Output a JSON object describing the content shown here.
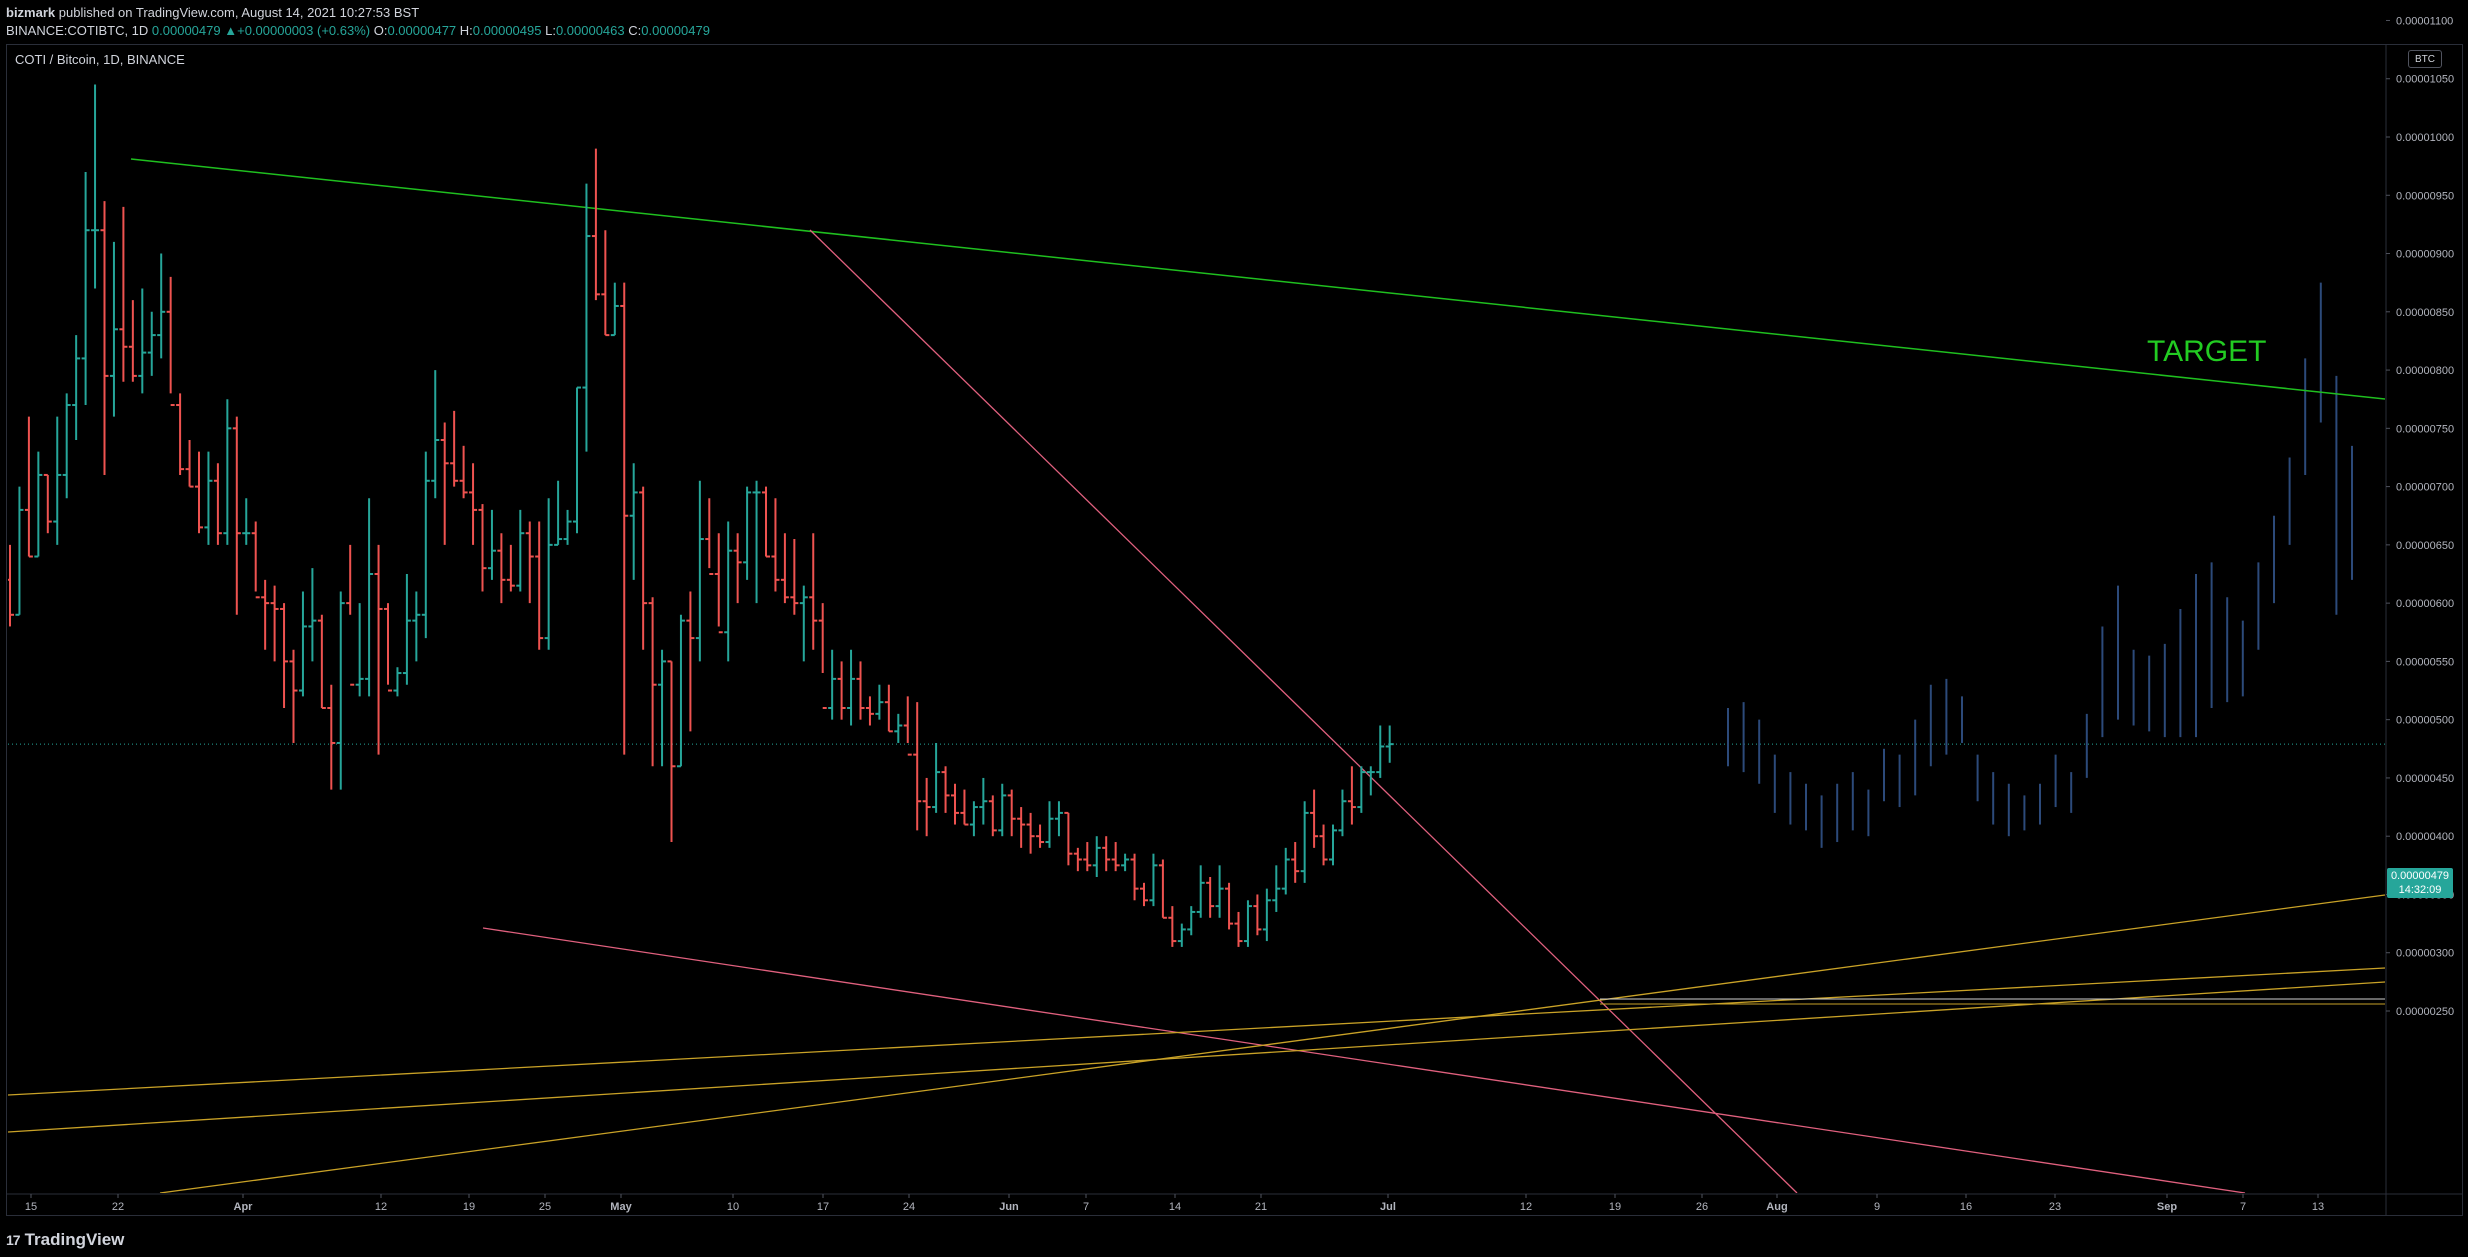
{
  "header": {
    "author": "bizmark",
    "published_text": "published on TradingView.com, August 14, 2021 10:27:53 BST",
    "symbol": "BINANCE:COTIBTC, 1D",
    "last": "0.00000479",
    "change_arrow": "▲",
    "change": "+0.00000003 (+0.63%)",
    "o_label": "O:",
    "o_value": "0.00000477",
    "h_label": "H:",
    "h_value": "0.00000495",
    "l_label": "L:",
    "l_value": "0.00000463",
    "c_label": "C:",
    "c_value": "0.00000479"
  },
  "chart_title": "COTI / Bitcoin, 1D, BINANCE",
  "currency_badge": "BTC",
  "last_price_tag": {
    "price": "0.00000479",
    "countdown": "14:32:09"
  },
  "branding": {
    "logo_text": "TradingView",
    "logo_mark": "17"
  },
  "colors": {
    "background": "#000000",
    "up": "#26a69a",
    "down": "#ef5350",
    "projection": "#2c4a7a",
    "green_trendline": "#1fbf1f",
    "pink_trendline": "#e0607e",
    "yellow_lines": "#c9a227",
    "target_text": "#22cc22"
  },
  "chart_data": {
    "type": "ohlc",
    "y_axis": {
      "min": 2.3e-06,
      "max": 1.11e-05,
      "ticks": [
        "0.00001100",
        "0.00001050",
        "0.00001000",
        "0.00000950",
        "0.00000900",
        "0.00000850",
        "0.00000800",
        "0.00000750",
        "0.00000700",
        "0.00000650",
        "0.00000600",
        "0.00000550",
        "0.00000500",
        "0.00000450",
        "0.00000400",
        "0.00000350",
        "0.00000300",
        "0.00000250"
      ]
    },
    "x_axis": {
      "tick_labels": [
        "15",
        "22",
        "Apr",
        "12",
        "19",
        "25",
        "May",
        "10",
        "17",
        "24",
        "Jun",
        "7",
        "14",
        "21",
        "Jul",
        "12",
        "19",
        "26",
        "Aug",
        "9",
        "16",
        "23",
        "Sep",
        "7",
        "13"
      ],
      "bold_labels": [
        "Apr",
        "May",
        "Jun",
        "Jul",
        "Aug",
        "Sep"
      ]
    },
    "last_price": 4.79e-06,
    "annotation": {
      "text": "TARGET",
      "color": "#22cc22"
    },
    "price_bars": [
      [
        6.2,
        6.5,
        5.8,
        5.9
      ],
      [
        5.9,
        7.0,
        5.9,
        6.8
      ],
      [
        6.8,
        7.6,
        6.4,
        6.4
      ],
      [
        6.4,
        7.3,
        6.4,
        7.1
      ],
      [
        7.1,
        7.1,
        6.6,
        6.7
      ],
      [
        6.7,
        7.6,
        6.5,
        7.1
      ],
      [
        7.1,
        7.8,
        6.9,
        7.7
      ],
      [
        7.7,
        8.3,
        7.4,
        8.1
      ],
      [
        8.1,
        9.7,
        7.7,
        9.2
      ],
      [
        9.2,
        10.45,
        8.7,
        9.2
      ],
      [
        9.2,
        9.45,
        7.1,
        7.95
      ],
      [
        7.95,
        9.1,
        7.6,
        8.35
      ],
      [
        8.35,
        9.4,
        7.9,
        8.2
      ],
      [
        8.2,
        8.6,
        7.9,
        7.95
      ],
      [
        7.95,
        8.7,
        7.8,
        8.15
      ],
      [
        8.15,
        8.5,
        7.95,
        8.3
      ],
      [
        8.3,
        9.0,
        8.1,
        8.5
      ],
      [
        8.5,
        8.8,
        7.8,
        7.7
      ],
      [
        7.7,
        7.8,
        7.1,
        7.15
      ],
      [
        7.15,
        7.4,
        7.0,
        7.0
      ],
      [
        7.0,
        7.3,
        6.6,
        6.65
      ],
      [
        6.65,
        7.3,
        6.5,
        7.05
      ],
      [
        7.05,
        7.2,
        6.5,
        6.6
      ],
      [
        6.6,
        7.75,
        6.5,
        7.5
      ],
      [
        7.5,
        7.6,
        5.9,
        6.6
      ],
      [
        6.6,
        6.9,
        6.5,
        6.6
      ],
      [
        6.6,
        6.7,
        6.1,
        6.05
      ],
      [
        6.05,
        6.2,
        5.6,
        6.0
      ],
      [
        6.0,
        6.15,
        5.5,
        5.95
      ],
      [
        5.95,
        6.0,
        5.1,
        5.5
      ],
      [
        5.5,
        5.6,
        4.8,
        5.25
      ],
      [
        5.25,
        6.1,
        5.2,
        5.8
      ],
      [
        5.8,
        6.3,
        5.5,
        5.85
      ],
      [
        5.85,
        5.9,
        5.1,
        5.1
      ],
      [
        5.1,
        5.3,
        4.4,
        4.8
      ],
      [
        4.8,
        6.1,
        4.4,
        6.0
      ],
      [
        6.0,
        6.5,
        5.9,
        5.3
      ],
      [
        5.3,
        6.0,
        5.2,
        5.35
      ],
      [
        5.35,
        6.9,
        5.2,
        6.25
      ],
      [
        6.25,
        6.5,
        4.7,
        5.95
      ],
      [
        5.95,
        6.0,
        5.3,
        5.25
      ],
      [
        5.25,
        5.45,
        5.2,
        5.4
      ],
      [
        5.4,
        6.25,
        5.3,
        5.85
      ],
      [
        5.85,
        6.1,
        5.5,
        5.9
      ],
      [
        5.9,
        7.3,
        5.7,
        7.05
      ],
      [
        7.05,
        8.0,
        6.9,
        7.4
      ],
      [
        7.4,
        7.55,
        6.5,
        7.2
      ],
      [
        7.2,
        7.65,
        7.0,
        7.05
      ],
      [
        7.05,
        7.35,
        6.9,
        6.95
      ],
      [
        6.95,
        7.2,
        6.5,
        6.8
      ],
      [
        6.8,
        6.85,
        6.1,
        6.3
      ],
      [
        6.3,
        6.8,
        6.2,
        6.45
      ],
      [
        6.45,
        6.6,
        6.0,
        6.2
      ],
      [
        6.2,
        6.5,
        6.1,
        6.15
      ],
      [
        6.15,
        6.8,
        6.1,
        6.6
      ],
      [
        6.6,
        6.7,
        6.0,
        6.4
      ],
      [
        6.4,
        6.7,
        5.6,
        5.7
      ],
      [
        5.7,
        6.9,
        5.6,
        6.5
      ],
      [
        6.5,
        7.05,
        6.5,
        6.55
      ],
      [
        6.55,
        6.8,
        6.5,
        6.7
      ],
      [
        6.7,
        7.85,
        6.6,
        7.85
      ],
      [
        7.85,
        9.6,
        7.3,
        9.15
      ],
      [
        9.15,
        9.9,
        8.6,
        8.65
      ],
      [
        8.65,
        9.2,
        8.3,
        8.3
      ],
      [
        8.3,
        8.75,
        8.3,
        8.55
      ],
      [
        8.55,
        8.75,
        4.7,
        6.75
      ],
      [
        6.75,
        7.2,
        6.2,
        6.95
      ],
      [
        6.95,
        7.0,
        5.6,
        6.0
      ],
      [
        6.0,
        6.05,
        4.6,
        5.3
      ],
      [
        5.3,
        5.6,
        4.6,
        5.5
      ],
      [
        5.5,
        5.5,
        3.95,
        4.6
      ],
      [
        4.6,
        5.9,
        4.6,
        5.85
      ],
      [
        5.85,
        6.1,
        4.9,
        5.7
      ],
      [
        5.7,
        7.05,
        5.5,
        6.55
      ],
      [
        6.55,
        6.9,
        6.3,
        6.25
      ],
      [
        6.25,
        6.6,
        5.8,
        5.75
      ],
      [
        5.75,
        6.7,
        5.5,
        6.45
      ],
      [
        6.45,
        6.6,
        6.0,
        6.35
      ],
      [
        6.35,
        7.0,
        6.2,
        6.95
      ],
      [
        6.95,
        7.05,
        6.0,
        6.95
      ],
      [
        6.95,
        7.0,
        6.4,
        6.4
      ],
      [
        6.4,
        6.9,
        6.1,
        6.2
      ],
      [
        6.2,
        6.6,
        6.0,
        6.05
      ],
      [
        6.05,
        6.55,
        5.9,
        6.0
      ],
      [
        6.0,
        6.15,
        5.5,
        6.05
      ],
      [
        6.05,
        6.6,
        5.6,
        5.85
      ],
      [
        5.85,
        6.0,
        5.4,
        5.1
      ],
      [
        5.1,
        5.6,
        5.0,
        5.35
      ],
      [
        5.35,
        5.5,
        5.0,
        5.1
      ],
      [
        5.1,
        5.6,
        4.95,
        5.35
      ],
      [
        5.35,
        5.5,
        5.0,
        5.1
      ],
      [
        5.1,
        5.2,
        4.95,
        5.05
      ],
      [
        5.05,
        5.3,
        5.0,
        5.15
      ],
      [
        5.15,
        5.3,
        4.9,
        4.9
      ],
      [
        4.9,
        5.05,
        4.8,
        4.95
      ],
      [
        4.95,
        5.2,
        4.8,
        4.7
      ],
      [
        4.7,
        5.15,
        4.05,
        4.3
      ],
      [
        4.3,
        4.5,
        4.0,
        4.25
      ],
      [
        4.25,
        4.8,
        4.2,
        4.55
      ],
      [
        4.55,
        4.6,
        4.2,
        4.35
      ],
      [
        4.35,
        4.45,
        4.1,
        4.2
      ],
      [
        4.2,
        4.4,
        4.1,
        4.1
      ],
      [
        4.1,
        4.3,
        4.0,
        4.25
      ],
      [
        4.25,
        4.5,
        4.1,
        4.3
      ],
      [
        4.3,
        4.35,
        4.0,
        4.05
      ],
      [
        4.05,
        4.45,
        4.0,
        4.35
      ],
      [
        4.35,
        4.4,
        4.0,
        4.15
      ],
      [
        4.15,
        4.25,
        3.9,
        4.1
      ],
      [
        4.1,
        4.2,
        3.85,
        4.0
      ],
      [
        4.0,
        4.1,
        3.9,
        3.95
      ],
      [
        3.95,
        4.3,
        3.9,
        4.15
      ],
      [
        4.15,
        4.3,
        4.0,
        4.2
      ],
      [
        4.2,
        4.2,
        3.75,
        3.85
      ],
      [
        3.85,
        3.9,
        3.7,
        3.8
      ],
      [
        3.8,
        3.95,
        3.7,
        3.75
      ],
      [
        3.75,
        4.0,
        3.65,
        3.9
      ],
      [
        3.9,
        4.0,
        3.7,
        3.8
      ],
      [
        3.8,
        3.95,
        3.7,
        3.75
      ],
      [
        3.75,
        3.85,
        3.7,
        3.8
      ],
      [
        3.8,
        3.85,
        3.45,
        3.55
      ],
      [
        3.55,
        3.6,
        3.4,
        3.45
      ],
      [
        3.45,
        3.85,
        3.4,
        3.75
      ],
      [
        3.75,
        3.8,
        3.3,
        3.3
      ],
      [
        3.3,
        3.4,
        3.05,
        3.1
      ],
      [
        3.1,
        3.25,
        3.05,
        3.2
      ],
      [
        3.2,
        3.4,
        3.15,
        3.35
      ],
      [
        3.35,
        3.75,
        3.3,
        3.6
      ],
      [
        3.6,
        3.65,
        3.3,
        3.4
      ],
      [
        3.4,
        3.75,
        3.3,
        3.55
      ],
      [
        3.55,
        3.6,
        3.2,
        3.25
      ],
      [
        3.25,
        3.35,
        3.05,
        3.1
      ],
      [
        3.1,
        3.45,
        3.05,
        3.4
      ],
      [
        3.4,
        3.5,
        3.15,
        3.2
      ],
      [
        3.2,
        3.55,
        3.1,
        3.45
      ],
      [
        3.45,
        3.75,
        3.35,
        3.55
      ],
      [
        3.55,
        3.9,
        3.5,
        3.8
      ],
      [
        3.8,
        3.95,
        3.6,
        3.7
      ],
      [
        3.7,
        4.3,
        3.6,
        4.2
      ],
      [
        4.2,
        4.4,
        3.9,
        4.0
      ],
      [
        4.0,
        4.1,
        3.75,
        3.8
      ],
      [
        3.8,
        4.1,
        3.75,
        4.05
      ],
      [
        4.05,
        4.4,
        4.0,
        4.3
      ],
      [
        4.3,
        4.6,
        4.1,
        4.25
      ],
      [
        4.25,
        4.6,
        4.2,
        4.55
      ],
      [
        4.55,
        4.6,
        4.35,
        4.55
      ],
      [
        4.55,
        4.95,
        4.5,
        4.77
      ],
      [
        4.77,
        4.95,
        4.63,
        4.79
      ]
    ],
    "projection_bars": [
      [
        5.1,
        4.6
      ],
      [
        5.15,
        4.55
      ],
      [
        5.0,
        4.45
      ],
      [
        4.7,
        4.2
      ],
      [
        4.55,
        4.1
      ],
      [
        4.45,
        4.05
      ],
      [
        4.35,
        3.9
      ],
      [
        4.45,
        3.95
      ],
      [
        4.55,
        4.05
      ],
      [
        4.4,
        4.0
      ],
      [
        4.75,
        4.3
      ],
      [
        4.7,
        4.25
      ],
      [
        5.0,
        4.35
      ],
      [
        5.3,
        4.6
      ],
      [
        5.35,
        4.7
      ],
      [
        5.2,
        4.8
      ],
      [
        4.7,
        4.3
      ],
      [
        4.55,
        4.1
      ],
      [
        4.45,
        4.0
      ],
      [
        4.35,
        4.05
      ],
      [
        4.45,
        4.1
      ],
      [
        4.7,
        4.25
      ],
      [
        4.55,
        4.2
      ],
      [
        5.05,
        4.5
      ],
      [
        5.8,
        4.85
      ],
      [
        6.15,
        5.0
      ],
      [
        5.6,
        4.95
      ],
      [
        5.55,
        4.9
      ],
      [
        5.65,
        4.85
      ],
      [
        5.95,
        4.85
      ],
      [
        6.25,
        4.85
      ],
      [
        6.35,
        5.1
      ],
      [
        6.05,
        5.15
      ],
      [
        5.85,
        5.2
      ],
      [
        6.35,
        5.6
      ],
      [
        6.75,
        6.0
      ],
      [
        7.25,
        6.5
      ],
      [
        8.1,
        7.1
      ],
      [
        8.75,
        7.55
      ],
      [
        7.95,
        5.9
      ],
      [
        7.35,
        6.2
      ]
    ]
  }
}
